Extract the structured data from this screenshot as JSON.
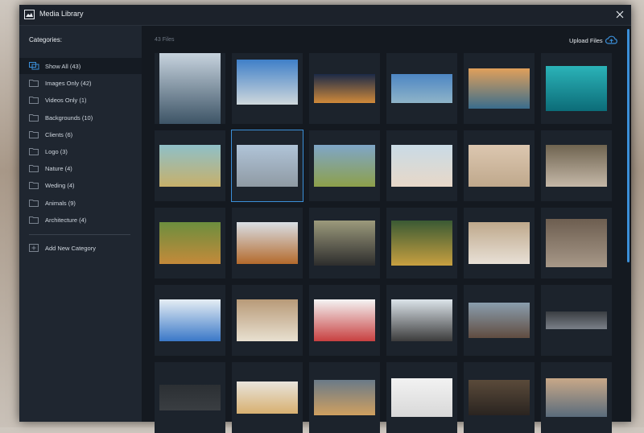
{
  "header": {
    "title": "Media Library"
  },
  "sidebar": {
    "heading": "Categories:",
    "categories": [
      "Show All (43)",
      "Images Only (42)",
      "Videos Only (1)",
      "Backgrounds (10)",
      "Clients (6)",
      "Logo (3)",
      "Nature (4)",
      "Weding (4)",
      "Animals (9)",
      "Architecture (4)"
    ],
    "add_button": "Add New Category"
  },
  "content": {
    "file_count": "43 Files",
    "upload_button": "Upload Files"
  }
}
